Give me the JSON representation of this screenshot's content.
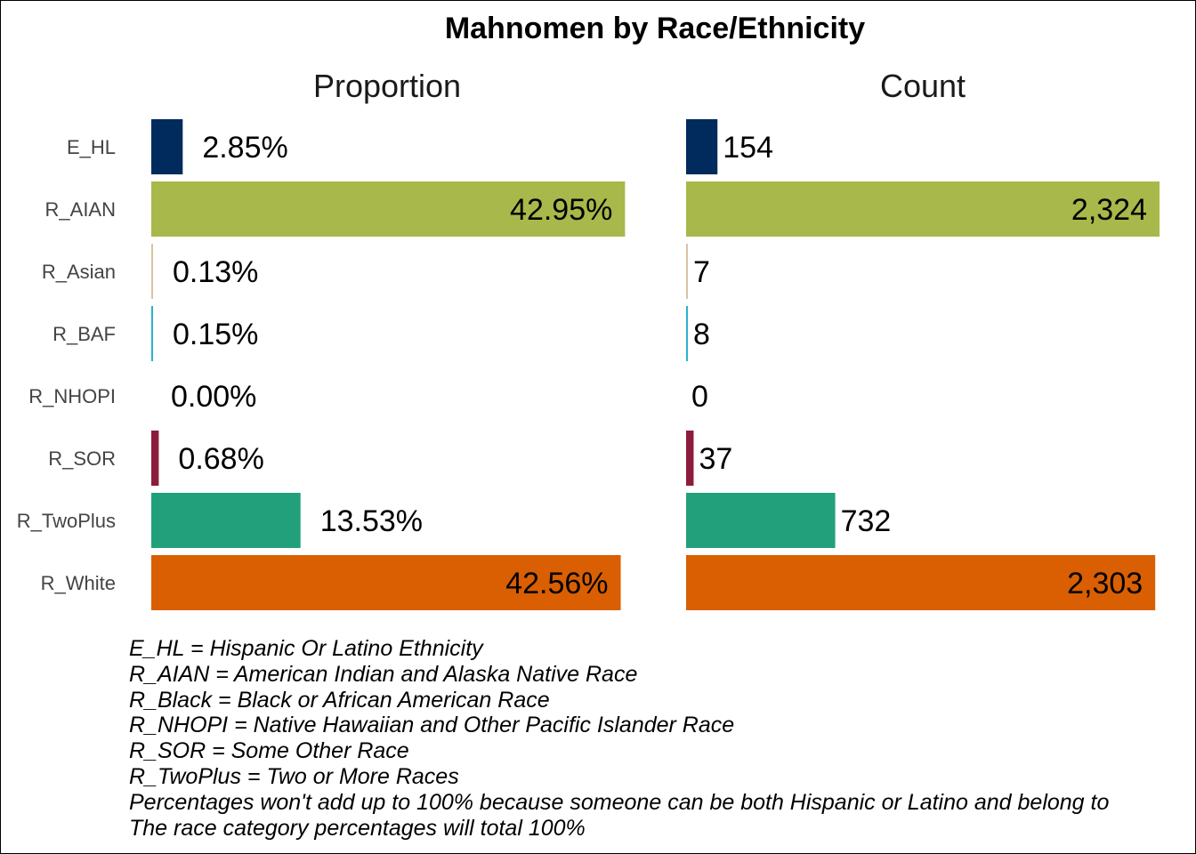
{
  "chart_data": {
    "type": "bar",
    "orientation": "horizontal",
    "title": "Mahnomen by Race/Ethnicity",
    "categories": [
      "E_HL",
      "R_AIAN",
      "R_Asian",
      "R_BAF",
      "R_NHOPI",
      "R_SOR",
      "R_TwoPlus",
      "R_White"
    ],
    "colors": [
      "#002b5c",
      "#a9b84a",
      "#d9c3a5",
      "#2ab1cf",
      "#8a8a8a",
      "#8c1d3a",
      "#21a07b",
      "#d95f02"
    ],
    "panels": [
      {
        "title": "Proportion",
        "values": [
          2.85,
          42.95,
          0.13,
          0.15,
          0.0,
          0.68,
          13.53,
          42.56
        ],
        "labels": [
          "2.85%",
          "42.95%",
          "0.13%",
          "0.15%",
          "0.00%",
          "0.68%",
          "13.53%",
          "42.56%"
        ],
        "xlim": [
          0,
          43
        ]
      },
      {
        "title": "Count",
        "values": [
          154,
          2324,
          7,
          8,
          0,
          37,
          732,
          2303
        ],
        "labels": [
          "154",
          "2,324",
          "7",
          "8",
          "0",
          "37",
          "732",
          "2,303"
        ],
        "xlim": [
          0,
          2324
        ]
      }
    ],
    "grid": false,
    "legend": "none"
  },
  "notes": [
    "E_HL = Hispanic Or Latino Ethnicity",
    "R_AIAN = American Indian and Alaska Native Race",
    "R_Black = Black or African American Race",
    "R_NHOPI = Native Hawaiian and Other Pacific Islander Race",
    "R_SOR = Some Other Race",
    "R_TwoPlus = Two or More Races",
    "Percentages won't add up to 100% because someone can be both Hispanic or Latino and belong to",
    "The race category percentages will total 100%"
  ]
}
